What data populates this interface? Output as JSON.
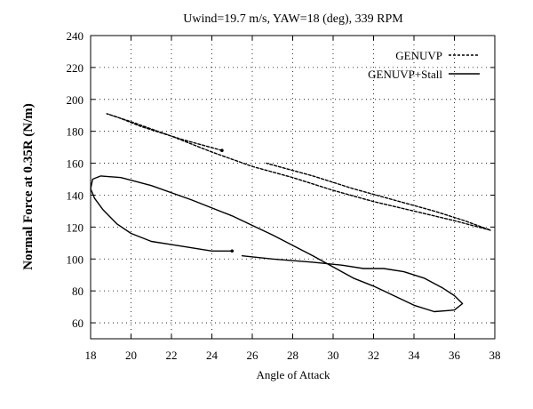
{
  "chart_data": {
    "type": "line",
    "title": "Uwind=19.7 m/s, YAW=18 (deg), 339 RPM",
    "xlabel": "Angle of Attack",
    "ylabel": "Normal Force at 0.35R (N/m)",
    "xlim": [
      18,
      38
    ],
    "ylim": [
      50,
      240
    ],
    "xticks": [
      18,
      20,
      22,
      24,
      26,
      28,
      30,
      32,
      34,
      36,
      38
    ],
    "yticks": [
      60,
      80,
      100,
      120,
      140,
      160,
      180,
      200,
      220,
      240
    ],
    "grid": true,
    "legend_position": "top-right",
    "series": [
      {
        "name": "GENUVP",
        "style": "dashed",
        "color": "#000000",
        "points": [
          [
            24.5,
            168
          ],
          [
            22.5,
            175
          ],
          [
            20.5,
            183
          ],
          [
            19.3,
            189
          ],
          [
            18.8,
            191
          ],
          [
            20.0,
            186
          ],
          [
            22.0,
            177
          ],
          [
            24.0,
            167
          ],
          [
            26.0,
            158
          ],
          [
            28.0,
            151
          ],
          [
            30.0,
            143
          ],
          [
            32.0,
            136
          ],
          [
            34.0,
            130
          ],
          [
            36.0,
            124
          ],
          [
            37.8,
            118
          ],
          [
            36.5,
            124
          ],
          [
            35.0,
            130
          ],
          [
            33.0,
            137
          ],
          [
            31.0,
            144
          ],
          [
            29.0,
            152
          ],
          [
            26.7,
            160
          ]
        ]
      },
      {
        "name": "GENUVP+Stall",
        "style": "solid",
        "color": "#000000",
        "points": [
          [
            25.0,
            105
          ],
          [
            24.0,
            105
          ],
          [
            23.0,
            107
          ],
          [
            22.0,
            109
          ],
          [
            21.0,
            111
          ],
          [
            20.0,
            116
          ],
          [
            19.3,
            122
          ],
          [
            18.6,
            131
          ],
          [
            18.2,
            138
          ],
          [
            18.0,
            144
          ],
          [
            18.1,
            150
          ],
          [
            18.5,
            152
          ],
          [
            19.5,
            151
          ],
          [
            21.0,
            146
          ],
          [
            23.0,
            137
          ],
          [
            25.0,
            127
          ],
          [
            27.0,
            115
          ],
          [
            29.0,
            102
          ],
          [
            30.0,
            95
          ],
          [
            31.0,
            88
          ],
          [
            32.0,
            83
          ],
          [
            33.0,
            77
          ],
          [
            34.0,
            71
          ],
          [
            35.0,
            67
          ],
          [
            36.0,
            68
          ],
          [
            36.4,
            72
          ],
          [
            36.0,
            77
          ],
          [
            35.4,
            82
          ],
          [
            34.5,
            88
          ],
          [
            33.5,
            92
          ],
          [
            32.5,
            94
          ],
          [
            31.5,
            94
          ],
          [
            30.5,
            96
          ],
          [
            29.0,
            98
          ],
          [
            27.0,
            100
          ],
          [
            25.5,
            102
          ]
        ]
      }
    ]
  }
}
